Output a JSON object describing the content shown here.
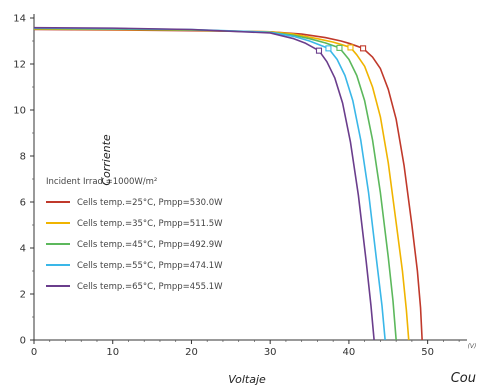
{
  "chart_data": {
    "type": "line",
    "title": "",
    "xlabel": "Voltaje",
    "ylabel": "Corriente",
    "xlim": [
      0,
      55
    ],
    "ylim": [
      0,
      14
    ],
    "x_ticks": [
      "0",
      "10",
      "20",
      "30",
      "40",
      "50"
    ],
    "y_ticks": [
      "0",
      "2",
      "4",
      "6",
      "8",
      "10",
      "12",
      "14"
    ],
    "x_unit_label": "(V)",
    "corner_label": "Cou",
    "grid": false,
    "legend_position": "center-left",
    "legend_title": "Incident Irrad.=1000W/m²",
    "series": [
      {
        "name": "Cells temp.=25°C, Pmpp=530.0W",
        "color": "#c0392b",
        "isc": 13.5,
        "voc": 49.3,
        "vmp": 41.8,
        "imp": 12.68,
        "points": [
          [
            0,
            13.5
          ],
          [
            10,
            13.48
          ],
          [
            20,
            13.45
          ],
          [
            30,
            13.4
          ],
          [
            34,
            13.3
          ],
          [
            37,
            13.15
          ],
          [
            39,
            13.0
          ],
          [
            40,
            12.9
          ],
          [
            41,
            12.78
          ],
          [
            41.8,
            12.68
          ],
          [
            43,
            12.3
          ],
          [
            44,
            11.8
          ],
          [
            45,
            10.9
          ],
          [
            46,
            9.6
          ],
          [
            47,
            7.6
          ],
          [
            48,
            5.0
          ],
          [
            48.7,
            3.0
          ],
          [
            49.1,
            1.4
          ],
          [
            49.3,
            0
          ]
        ]
      },
      {
        "name": "Cells temp.=35°C, Pmpp=511.5W",
        "color": "#f0b400",
        "isc": 13.52,
        "voc": 47.6,
        "vmp": 40.2,
        "imp": 12.72,
        "points": [
          [
            0,
            13.52
          ],
          [
            10,
            13.5
          ],
          [
            20,
            13.47
          ],
          [
            30,
            13.4
          ],
          [
            33,
            13.3
          ],
          [
            36,
            13.1
          ],
          [
            38,
            12.95
          ],
          [
            39,
            12.85
          ],
          [
            40.2,
            12.72
          ],
          [
            41,
            12.4
          ],
          [
            42,
            11.9
          ],
          [
            43,
            11.0
          ],
          [
            44,
            9.7
          ],
          [
            45,
            7.7
          ],
          [
            46,
            5.1
          ],
          [
            46.8,
            3.0
          ],
          [
            47.3,
            1.3
          ],
          [
            47.6,
            0
          ]
        ]
      },
      {
        "name": "Cells temp.=45°C, Pmpp=492.9W",
        "color": "#5cb85c",
        "isc": 13.54,
        "voc": 46.0,
        "vmp": 38.8,
        "imp": 12.7,
        "points": [
          [
            0,
            13.54
          ],
          [
            10,
            13.52
          ],
          [
            20,
            13.48
          ],
          [
            30,
            13.38
          ],
          [
            33,
            13.25
          ],
          [
            35,
            13.1
          ],
          [
            37,
            12.92
          ],
          [
            38.8,
            12.7
          ],
          [
            40,
            12.2
          ],
          [
            41,
            11.5
          ],
          [
            42,
            10.4
          ],
          [
            43,
            8.7
          ],
          [
            44,
            6.4
          ],
          [
            45,
            3.6
          ],
          [
            45.6,
            1.7
          ],
          [
            46,
            0
          ]
        ]
      },
      {
        "name": "Cells temp.=55°C, Pmpp=474.1W",
        "color": "#3ab7e8",
        "isc": 13.56,
        "voc": 44.6,
        "vmp": 37.4,
        "imp": 12.68,
        "points": [
          [
            0,
            13.56
          ],
          [
            10,
            13.54
          ],
          [
            20,
            13.5
          ],
          [
            30,
            13.38
          ],
          [
            33,
            13.2
          ],
          [
            35,
            13.0
          ],
          [
            37.4,
            12.68
          ],
          [
            38.5,
            12.2
          ],
          [
            39.5,
            11.5
          ],
          [
            40.5,
            10.4
          ],
          [
            41.5,
            8.7
          ],
          [
            42.5,
            6.4
          ],
          [
            43.5,
            3.5
          ],
          [
            44.2,
            1.5
          ],
          [
            44.6,
            0
          ]
        ]
      },
      {
        "name": "Cells temp.=65°C, Pmpp=455.1W",
        "color": "#6a3d8c",
        "isc": 13.58,
        "voc": 43.2,
        "vmp": 36.2,
        "imp": 12.58,
        "points": [
          [
            0,
            13.58
          ],
          [
            10,
            13.56
          ],
          [
            20,
            13.5
          ],
          [
            30,
            13.35
          ],
          [
            33,
            13.1
          ],
          [
            34.5,
            12.9
          ],
          [
            36.2,
            12.58
          ],
          [
            37.2,
            12.1
          ],
          [
            38.2,
            11.4
          ],
          [
            39.2,
            10.3
          ],
          [
            40.2,
            8.6
          ],
          [
            41.2,
            6.3
          ],
          [
            42.2,
            3.4
          ],
          [
            42.8,
            1.5
          ],
          [
            43.2,
            0
          ]
        ]
      }
    ]
  }
}
